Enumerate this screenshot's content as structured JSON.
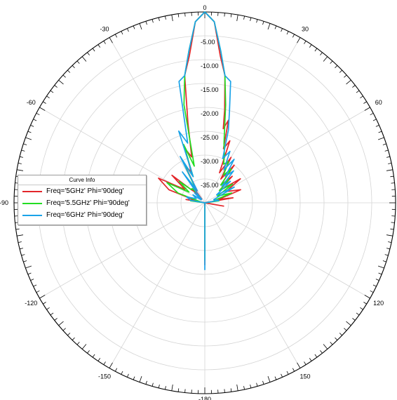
{
  "chart_data": {
    "type": "polar",
    "angle_direction": "clockwise",
    "zero_at": "top",
    "angle_ticks": [
      -180,
      -150,
      -120,
      -90,
      -60,
      -30,
      0,
      30,
      60,
      90,
      120,
      150
    ],
    "angle_tick_labels": [
      "-180",
      "-150",
      "-120",
      "-90",
      "-60",
      "-30",
      "0",
      "30",
      "60",
      "90",
      "120",
      "150"
    ],
    "r_range": [
      -40,
      0
    ],
    "r_tick_labels": [
      "0",
      "-5.00",
      "-10.00",
      "-15.00",
      "-20.00",
      "-25.00",
      "-30.00",
      "-35.00"
    ],
    "legend": {
      "title": "Curve Info",
      "placement": "left"
    },
    "series": [
      {
        "name": "Freq='5GHz' Phi='90deg'",
        "color": "#e3262a",
        "theta": [
          -40,
          -36,
          -32,
          -28,
          -24,
          -20,
          -16,
          -12,
          -9,
          -6,
          -3,
          0,
          3,
          6,
          9,
          12,
          14,
          16,
          19,
          22,
          26,
          30,
          34,
          38,
          42,
          46,
          50,
          56,
          62,
          70,
          76,
          80,
          90,
          100,
          120,
          150,
          180,
          -150,
          -120,
          -90,
          -80,
          -76,
          -70,
          -62,
          -56,
          -50,
          -46,
          -42
        ],
        "r": [
          -39,
          -34,
          -37,
          -31,
          -33,
          -28,
          -30,
          -23,
          -13,
          -9,
          -2,
          0,
          -2,
          -9,
          -13,
          -20,
          -24,
          -22,
          -28,
          -26,
          -33,
          -29,
          -34,
          -30,
          -35,
          -32,
          -36,
          -31,
          -35,
          -32,
          -37,
          -34,
          -40,
          -36,
          -40,
          -40,
          -27,
          -40,
          -40,
          -40,
          -36,
          -38,
          -32,
          -29,
          -35,
          -31,
          -36,
          -37
        ]
      },
      {
        "name": "Freq='5.5GHz' Phi='90deg'",
        "color": "#22dd22",
        "theta": [
          -40,
          -36,
          -32,
          -28,
          -24,
          -20,
          -16,
          -12,
          -9,
          -6,
          -3,
          0,
          3,
          6,
          9,
          12,
          15,
          18,
          22,
          26,
          30,
          34,
          38,
          42,
          46,
          50,
          56,
          62,
          70,
          76,
          82,
          90,
          110,
          140,
          180,
          -140,
          -110,
          -90,
          -82,
          -76,
          -70,
          -62,
          -56,
          -50,
          -46,
          -42
        ],
        "r": [
          -37,
          -35,
          -36,
          -30,
          -34,
          -27,
          -32,
          -19,
          -13,
          -8,
          -2,
          0,
          -2,
          -8,
          -13,
          -19,
          -24,
          -27,
          -29,
          -31,
          -30,
          -33,
          -31,
          -35,
          -33,
          -36,
          -33,
          -37,
          -34,
          -38,
          -37,
          -40,
          -40,
          -40,
          -28,
          -40,
          -40,
          -40,
          -37,
          -39,
          -34,
          -31,
          -36,
          -33,
          -36,
          -36
        ]
      },
      {
        "name": "Freq='6GHz' Phi='90deg'",
        "color": "#1aa3e8",
        "theta": [
          -40,
          -36,
          -32,
          -28,
          -24,
          -20,
          -16,
          -12,
          -9,
          -6,
          -3,
          0,
          3,
          6,
          9,
          12,
          15,
          18,
          22,
          26,
          30,
          34,
          38,
          42,
          46,
          50,
          56,
          62,
          70,
          80,
          90,
          120,
          150,
          180,
          -150,
          -120,
          -90,
          -80,
          -72,
          -64,
          -56,
          -50,
          -46,
          -42
        ],
        "r": [
          -38,
          -32,
          -37,
          -29,
          -34,
          -24,
          -27,
          -14,
          -13,
          -8,
          -2,
          0,
          -2,
          -8,
          -13,
          -14,
          -20,
          -24,
          -30,
          -28,
          -32,
          -29,
          -33,
          -31,
          -35,
          -33,
          -37,
          -33,
          -38,
          -37,
          -40,
          -40,
          -40,
          -26,
          -40,
          -40,
          -40,
          -37,
          -36,
          -38,
          -37,
          -39,
          -37,
          -39
        ]
      }
    ]
  }
}
